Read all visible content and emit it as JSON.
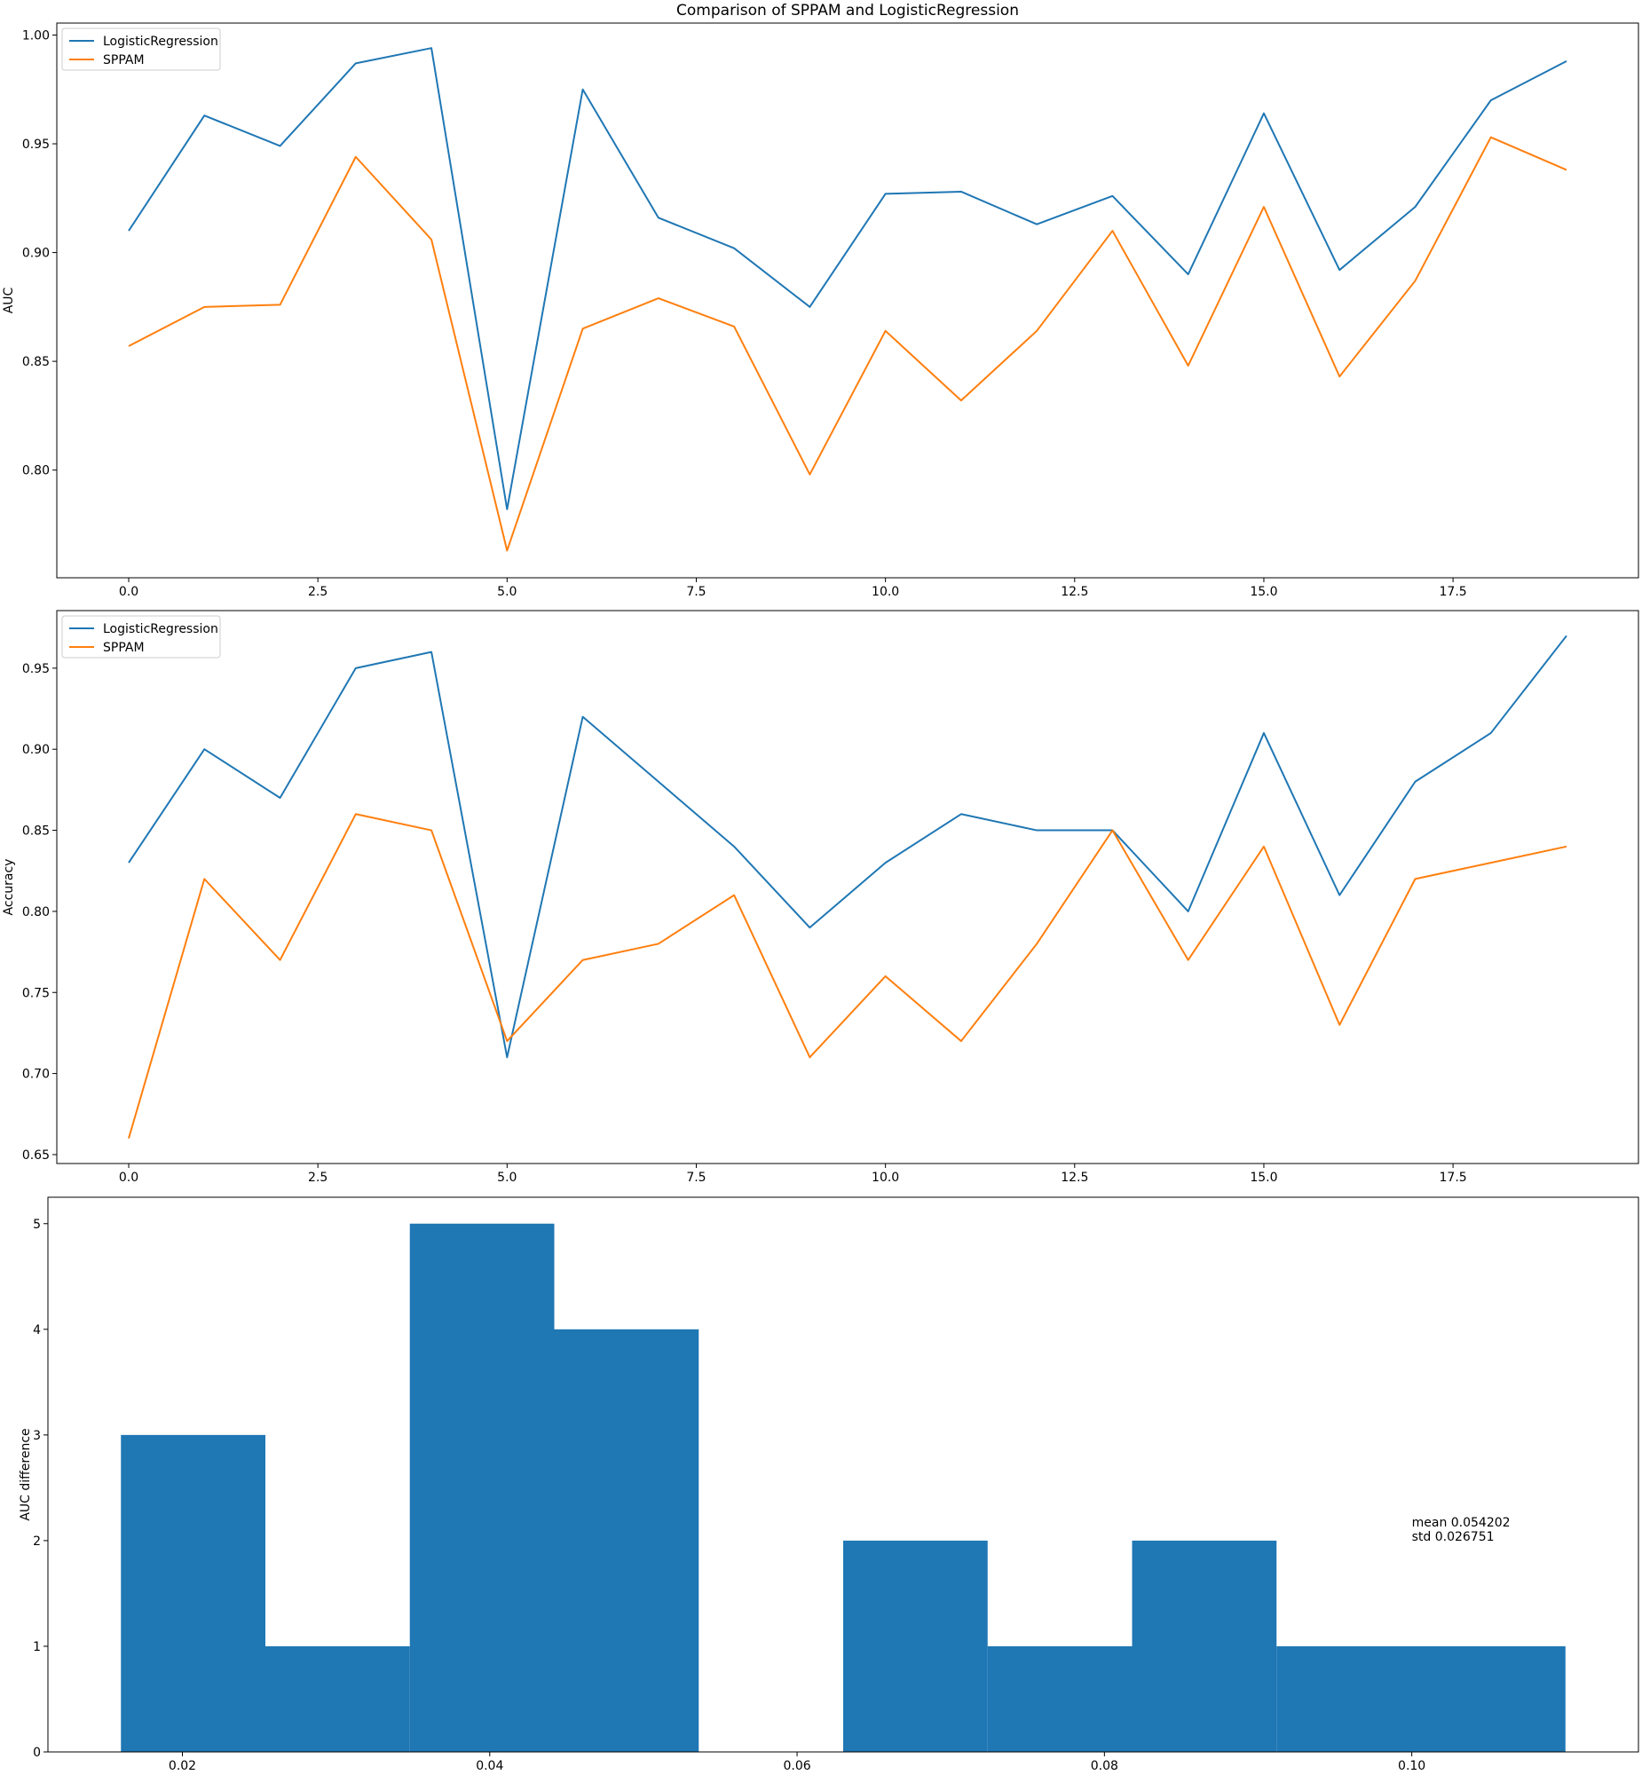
{
  "figure": {
    "title": "Comparison of SPPAM and LogisticRegression"
  },
  "colors": {
    "logistic": "#1f77b4",
    "sppam": "#ff7f0e",
    "hist": "#1f77b4",
    "axes": "#000000",
    "background": "#ffffff"
  },
  "chart_data": [
    {
      "type": "line",
      "title": "Comparison of SPPAM and LogisticRegression",
      "xlabel": "",
      "ylabel": "AUC",
      "x": [
        0,
        1,
        2,
        3,
        4,
        5,
        6,
        7,
        8,
        9,
        10,
        11,
        12,
        13,
        14,
        15,
        16,
        17,
        18,
        19
      ],
      "xticks": [
        0.0,
        2.5,
        5.0,
        7.5,
        10.0,
        12.5,
        15.0,
        17.5
      ],
      "xtick_labels": [
        "0.0",
        "2.5",
        "5.0",
        "7.5",
        "10.0",
        "12.5",
        "15.0",
        "17.5"
      ],
      "xlim": [
        -0.95,
        19.95
      ],
      "yticks": [
        0.8,
        0.85,
        0.9,
        0.95,
        1.0
      ],
      "ytick_labels": [
        "0.80",
        "0.85",
        "0.90",
        "0.95",
        "1.00"
      ],
      "ylim": [
        0.7505,
        1.0055
      ],
      "grid": false,
      "legend_position": "upper left",
      "series": [
        {
          "name": "LogisticRegression",
          "color_key": "logistic",
          "values": [
            0.91,
            0.963,
            0.949,
            0.987,
            0.994,
            0.782,
            0.975,
            0.916,
            0.902,
            0.875,
            0.927,
            0.928,
            0.913,
            0.926,
            0.89,
            0.964,
            0.892,
            0.921,
            0.97,
            0.988
          ]
        },
        {
          "name": "SPPAM",
          "color_key": "sppam",
          "values": [
            0.857,
            0.875,
            0.876,
            0.944,
            0.906,
            0.763,
            0.865,
            0.879,
            0.866,
            0.798,
            0.864,
            0.832,
            0.864,
            0.91,
            0.848,
            0.921,
            0.843,
            0.887,
            0.953,
            0.938
          ]
        }
      ]
    },
    {
      "type": "line",
      "title": "",
      "xlabel": "",
      "ylabel": "Accuracy",
      "x": [
        0,
        1,
        2,
        3,
        4,
        5,
        6,
        7,
        8,
        9,
        10,
        11,
        12,
        13,
        14,
        15,
        16,
        17,
        18,
        19
      ],
      "xticks": [
        0.0,
        2.5,
        5.0,
        7.5,
        10.0,
        12.5,
        15.0,
        17.5
      ],
      "xtick_labels": [
        "0.0",
        "2.5",
        "5.0",
        "7.5",
        "10.0",
        "12.5",
        "15.0",
        "17.5"
      ],
      "xlim": [
        -0.95,
        19.95
      ],
      "yticks": [
        0.65,
        0.7,
        0.75,
        0.8,
        0.85,
        0.9,
        0.95
      ],
      "ytick_labels": [
        "0.65",
        "0.70",
        "0.75",
        "0.80",
        "0.85",
        "0.90",
        "0.95"
      ],
      "ylim": [
        0.6445,
        0.9855
      ],
      "grid": false,
      "legend_position": "upper left",
      "series": [
        {
          "name": "LogisticRegression",
          "color_key": "logistic",
          "values": [
            0.83,
            0.9,
            0.87,
            0.95,
            0.96,
            0.71,
            0.92,
            0.88,
            0.84,
            0.79,
            0.83,
            0.86,
            0.85,
            0.85,
            0.8,
            0.91,
            0.81,
            0.88,
            0.91,
            0.97
          ]
        },
        {
          "name": "SPPAM",
          "color_key": "sppam",
          "values": [
            0.66,
            0.82,
            0.77,
            0.86,
            0.85,
            0.72,
            0.77,
            0.78,
            0.81,
            0.71,
            0.76,
            0.72,
            0.78,
            0.85,
            0.77,
            0.84,
            0.73,
            0.82,
            0.83,
            0.84
          ]
        }
      ]
    },
    {
      "type": "bar",
      "subtype": "histogram",
      "title": "",
      "xlabel": "",
      "ylabel": "AUC difference",
      "bin_edges": [
        0.016,
        0.0254,
        0.0348,
        0.0442,
        0.0536,
        0.063,
        0.0724,
        0.0818,
        0.0912,
        0.1006,
        0.11
      ],
      "counts": [
        3,
        1,
        5,
        4,
        0,
        2,
        1,
        2,
        1,
        1
      ],
      "xticks": [
        0.02,
        0.04,
        0.06,
        0.08,
        0.1
      ],
      "xtick_labels": [
        "0.02",
        "0.04",
        "0.06",
        "0.08",
        "0.10"
      ],
      "xlim": [
        0.01125,
        0.11475
      ],
      "yticks": [
        0,
        1,
        2,
        3,
        4,
        5
      ],
      "ytick_labels": [
        "0",
        "1",
        "2",
        "3",
        "4",
        "5"
      ],
      "ylim": [
        0,
        5.25
      ],
      "grid": false,
      "annotation": {
        "lines": [
          "mean  0.054202",
          "std   0.026751"
        ],
        "x": 0.1,
        "y": 2.0
      }
    }
  ]
}
